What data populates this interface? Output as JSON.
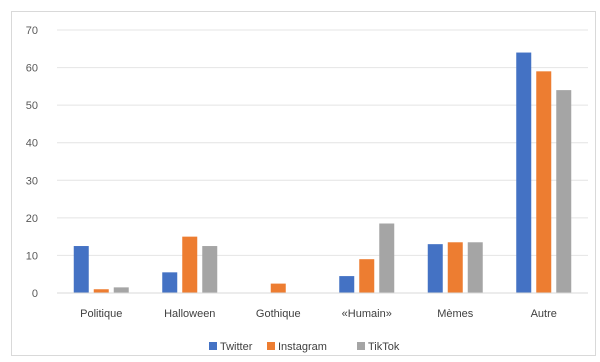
{
  "chart_data": {
    "type": "bar",
    "categories": [
      "Politique",
      "Halloween",
      "Gothique",
      "«Humain»",
      "Mèmes",
      "Autre"
    ],
    "series": [
      {
        "name": "Twitter",
        "color": "#4472c4",
        "values": [
          12.5,
          5.5,
          0,
          4.5,
          13,
          64
        ]
      },
      {
        "name": "Instagram",
        "color": "#ed7d31",
        "values": [
          1,
          15,
          2.5,
          9,
          13.5,
          59
        ]
      },
      {
        "name": "TikTok",
        "color": "#a5a5a5",
        "values": [
          1.5,
          12.5,
          0,
          18.5,
          13.5,
          54
        ]
      }
    ],
    "ylim": [
      0,
      70
    ],
    "yticks": [
      "0",
      "10",
      "20",
      "30",
      "40",
      "50",
      "60",
      "70"
    ],
    "grid": true,
    "legend_position": "bottom",
    "title": "",
    "xlabel": "",
    "ylabel": ""
  }
}
